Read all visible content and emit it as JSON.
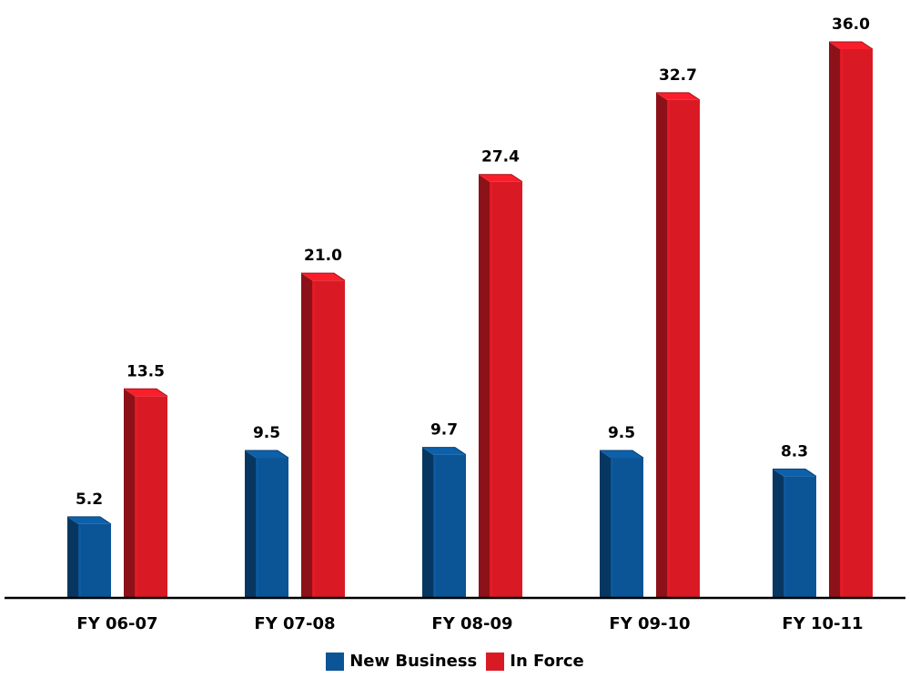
{
  "chart_data": {
    "type": "bar",
    "categories": [
      "FY 06-07",
      "FY 07-08",
      "FY 08-09",
      "FY 09-10",
      "FY 10-11"
    ],
    "series": [
      {
        "name": "New Business",
        "values": [
          5.2,
          9.5,
          9.7,
          9.5,
          8.3
        ],
        "color": "#0B5495"
      },
      {
        "name": "In Force",
        "values": [
          13.5,
          21.0,
          27.4,
          32.7,
          36.0
        ],
        "color": "#D91A25"
      }
    ],
    "ylim": [
      0,
      36
    ],
    "grid": false,
    "legend_position": "bottom-center",
    "data_labels": true
  }
}
